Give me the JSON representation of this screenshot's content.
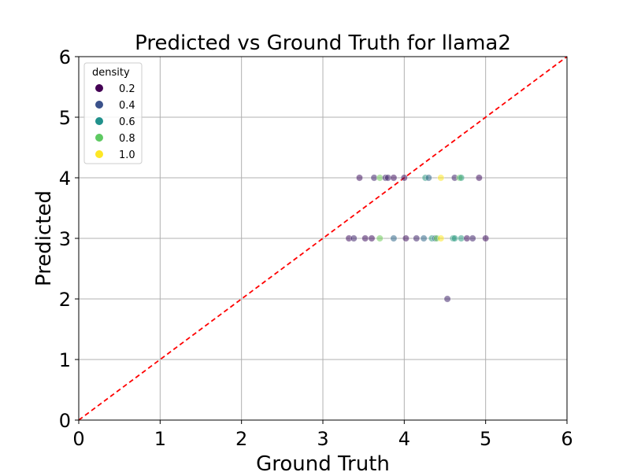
{
  "chart_data": {
    "type": "scatter",
    "title": "Predicted vs Ground Truth for llama2",
    "xlabel": "Ground Truth",
    "ylabel": "Predicted",
    "xlim": [
      0,
      6
    ],
    "ylim": [
      0,
      6
    ],
    "xticks": [
      0,
      1,
      2,
      3,
      4,
      5,
      6
    ],
    "yticks": [
      0,
      1,
      2,
      3,
      4,
      5,
      6
    ],
    "grid": true,
    "reference_line": {
      "style": "dashed",
      "color": "#ff0000",
      "from": [
        0,
        0
      ],
      "to": [
        6,
        6
      ]
    },
    "legend": {
      "title": "density",
      "placement": "top-left",
      "entries": [
        {
          "label": "0.2",
          "color": "#440154"
        },
        {
          "label": "0.4",
          "color": "#3b528b"
        },
        {
          "label": "0.6",
          "color": "#21918c"
        },
        {
          "label": "0.8",
          "color": "#5ec962"
        },
        {
          "label": "1.0",
          "color": "#fde725"
        }
      ]
    },
    "points": [
      {
        "x": 3.45,
        "y": 4,
        "density": 0.15
      },
      {
        "x": 3.63,
        "y": 4,
        "density": 0.2
      },
      {
        "x": 3.7,
        "y": 4,
        "density": 0.8
      },
      {
        "x": 3.77,
        "y": 4,
        "density": 0.2
      },
      {
        "x": 3.8,
        "y": 4,
        "density": 0.2
      },
      {
        "x": 3.87,
        "y": 4,
        "density": 0.15
      },
      {
        "x": 4.0,
        "y": 4,
        "density": 0.15
      },
      {
        "x": 4.26,
        "y": 4,
        "density": 0.6
      },
      {
        "x": 4.3,
        "y": 4,
        "density": 0.4
      },
      {
        "x": 4.45,
        "y": 4,
        "density": 1.0
      },
      {
        "x": 4.62,
        "y": 4,
        "density": 0.2
      },
      {
        "x": 4.68,
        "y": 4,
        "density": 0.8
      },
      {
        "x": 4.7,
        "y": 4,
        "density": 0.6
      },
      {
        "x": 4.92,
        "y": 4,
        "density": 0.15
      },
      {
        "x": 3.32,
        "y": 3,
        "density": 0.15
      },
      {
        "x": 3.38,
        "y": 3,
        "density": 0.2
      },
      {
        "x": 3.52,
        "y": 3,
        "density": 0.15
      },
      {
        "x": 3.6,
        "y": 3,
        "density": 0.15
      },
      {
        "x": 3.7,
        "y": 3,
        "density": 0.8
      },
      {
        "x": 3.87,
        "y": 3,
        "density": 0.4
      },
      {
        "x": 4.02,
        "y": 3,
        "density": 0.15
      },
      {
        "x": 4.15,
        "y": 3,
        "density": 0.2
      },
      {
        "x": 4.24,
        "y": 3,
        "density": 0.4
      },
      {
        "x": 4.34,
        "y": 3,
        "density": 0.6
      },
      {
        "x": 4.38,
        "y": 3,
        "density": 0.4
      },
      {
        "x": 4.4,
        "y": 3,
        "density": 0.8
      },
      {
        "x": 4.45,
        "y": 3,
        "density": 1.0
      },
      {
        "x": 4.6,
        "y": 3,
        "density": 0.6
      },
      {
        "x": 4.62,
        "y": 3,
        "density": 0.6
      },
      {
        "x": 4.7,
        "y": 3,
        "density": 0.6
      },
      {
        "x": 4.77,
        "y": 3,
        "density": 0.15
      },
      {
        "x": 4.84,
        "y": 3,
        "density": 0.2
      },
      {
        "x": 5.0,
        "y": 3,
        "density": 0.15
      },
      {
        "x": 4.53,
        "y": 2,
        "density": 0.2
      }
    ]
  }
}
